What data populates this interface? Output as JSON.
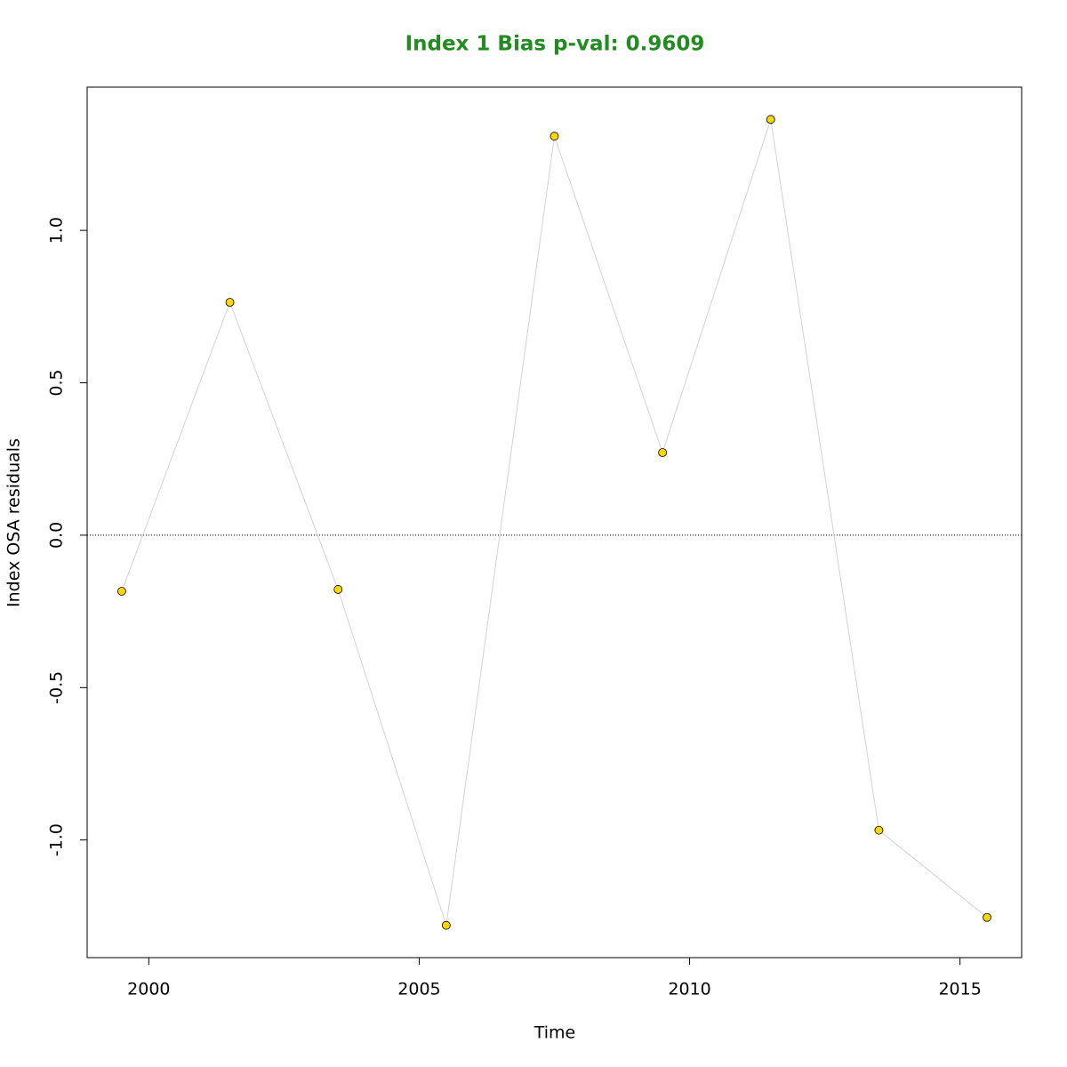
{
  "chart_data": {
    "type": "line",
    "title": "Index 1 Bias p-val: 0.9609",
    "title_color": "#228b22",
    "xlabel": "Time",
    "ylabel": "Index OSA residuals",
    "x": [
      1999.5,
      2001.5,
      2003.5,
      2005.5,
      2007.5,
      2009.5,
      2011.5,
      2013.5,
      2015.5
    ],
    "series": [
      {
        "color": "#d3d3d3",
        "marker_fill": "#ffd700",
        "marker_edge": "#000000",
        "values": [
          -0.184,
          0.764,
          -0.178,
          -1.28,
          1.309,
          0.271,
          1.364,
          -0.968,
          -1.254
        ]
      }
    ],
    "xlim": [
      1998.86,
      2016.14
    ],
    "xticks": [
      2000,
      2005,
      2010,
      2015
    ],
    "ylim": [
      -1.386,
      1.47
    ],
    "yticks": [
      {
        "value": -1,
        "label": "-1.0"
      },
      -0.5,
      {
        "value": 0,
        "label": "0.0"
      },
      0.5,
      {
        "value": 1,
        "label": "1.0"
      }
    ],
    "hline": 0
  }
}
